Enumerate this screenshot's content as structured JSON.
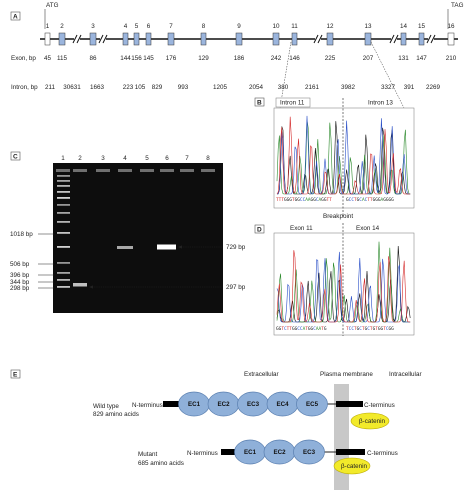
{
  "panel_a": {
    "label": "A",
    "atg": "ATG",
    "tag": "TAG",
    "exon_row_label": "Exon, bp",
    "intron_row_label": "Intron, bp",
    "exons": [
      {
        "num": "1",
        "size": "45"
      },
      {
        "num": "2",
        "size": "115"
      },
      {
        "num": "3",
        "size": "86"
      },
      {
        "num": "4",
        "size": "144"
      },
      {
        "num": "5",
        "size": "156"
      },
      {
        "num": "6",
        "size": "145"
      },
      {
        "num": "7",
        "size": "176"
      },
      {
        "num": "8",
        "size": "129"
      },
      {
        "num": "9",
        "size": "186"
      },
      {
        "num": "10",
        "size": "242"
      },
      {
        "num": "11",
        "size": "146"
      },
      {
        "num": "12",
        "size": "225"
      },
      {
        "num": "13",
        "size": "207"
      },
      {
        "num": "14",
        "size": "131"
      },
      {
        "num": "15",
        "size": "147"
      },
      {
        "num": "16",
        "size": "210"
      }
    ],
    "introns": [
      "211",
      "30631",
      "1663",
      "223",
      "105",
      "829",
      "993",
      "1205",
      "2054",
      "380",
      "2161",
      "3982",
      "3327",
      "391",
      "2269"
    ]
  },
  "panel_b": {
    "label": "B",
    "left_title": "Intron 11",
    "right_title": "Intron 13",
    "left_seq": "TTTGGGTGGCCAAGGCAGGTT",
    "right_seq": "GCCTGCACTTGGGAGGGG"
  },
  "breakpoint_label": "Breakpoint",
  "panel_c": {
    "label": "C",
    "lane_numbers": [
      "1",
      "2",
      "3",
      "4",
      "5",
      "6",
      "7",
      "8"
    ],
    "left_markers": [
      "1018 bp",
      "506 bp",
      "396 bp",
      "344 bp",
      "298 bp"
    ],
    "right_marker_top": "729 bp",
    "right_marker_bottom": "297 bp"
  },
  "panel_d": {
    "label": "D",
    "left_title": "Exon 11",
    "right_title": "Exon 14",
    "left_seq": "GGTCTTGGCCATGGCAATG",
    "right_seq": "TCCTGCTGCTGTGGTCGG"
  },
  "panel_e": {
    "label": "E",
    "header_extracellular": "Extracellular",
    "header_membrane": "Plasma membrane",
    "header_intracellular": "Intracellular",
    "wild_type": {
      "name": "Wild type",
      "length": "829 amino acids",
      "n_label": "N-terminus",
      "c_label": "C-terminus",
      "domains": [
        "EC1",
        "EC2",
        "EC3",
        "EC4",
        "EC5"
      ],
      "partner": "β-catenin"
    },
    "mutant": {
      "name": "Mutant",
      "length": "685 amino acids",
      "n_label": "N-terminus",
      "c_label": "C-terminus",
      "domains": [
        "EC1",
        "EC2",
        "EC3"
      ],
      "partner": "β-catenin"
    },
    "colors": {
      "domain_fill": "#8fb0d9",
      "domain_stroke": "#5a7fb0",
      "membrane": "#c8c8c8",
      "partner_fill": "#f2ea2a",
      "exon_fill": "#9bb5dd"
    }
  }
}
